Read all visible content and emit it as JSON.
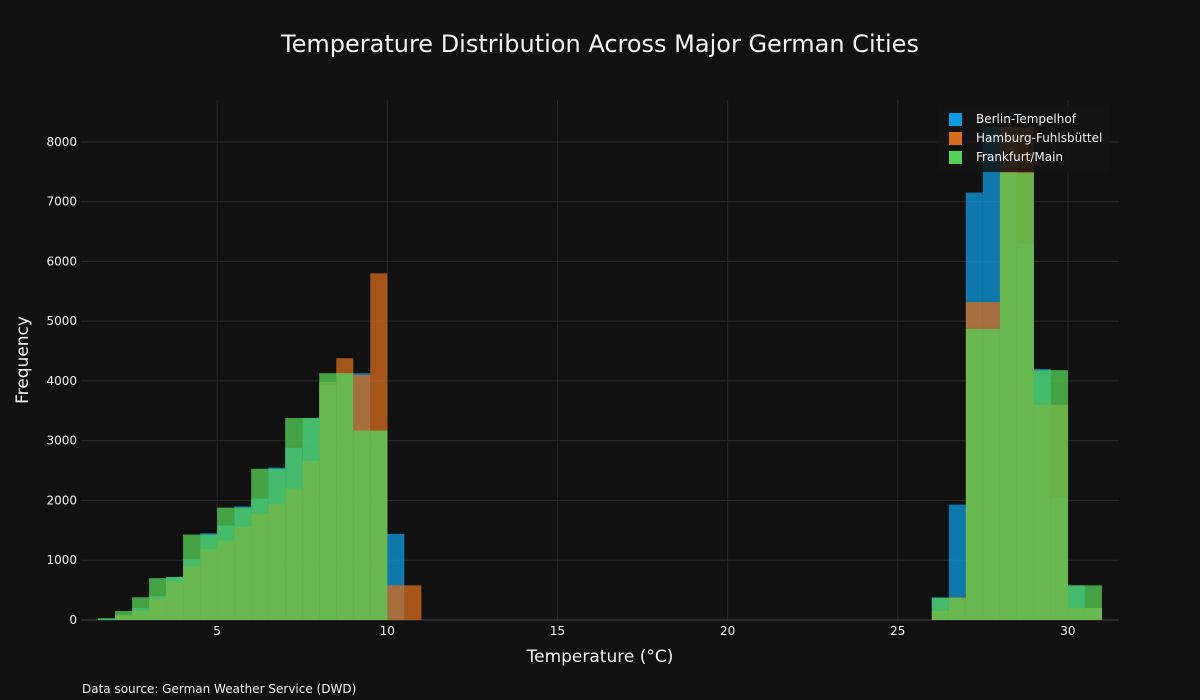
{
  "chart_data": {
    "type": "bar",
    "title": "Temperature Distribution Across Major German Cities",
    "xlabel": "Temperature (°C)",
    "ylabel": "Frequency",
    "xlim": [
      1,
      31.5
    ],
    "ylim": [
      0,
      8700
    ],
    "xticks": [
      5,
      10,
      15,
      20,
      25,
      30
    ],
    "yticks": [
      0,
      1000,
      2000,
      3000,
      4000,
      5000,
      6000,
      7000,
      8000
    ],
    "grid": true,
    "bin_width": 0.5,
    "legend_position": "top-right",
    "source": "Data source: German Weather Service (DWD)",
    "series": [
      {
        "name": "Berlin-Tempelhof",
        "color": "#0e9be2",
        "bin_starts": [
          1.5,
          2.0,
          2.5,
          3.0,
          3.5,
          4.0,
          4.5,
          5.0,
          5.5,
          6.0,
          6.5,
          7.0,
          7.5,
          8.0,
          8.5,
          9.0,
          9.5,
          10.0,
          26.0,
          26.5,
          27.0,
          27.5,
          28.0,
          28.5,
          29.0,
          29.5,
          30.0,
          30.5
        ],
        "values": [
          20,
          80,
          200,
          400,
          720,
          1020,
          1450,
          1580,
          1900,
          2030,
          2550,
          2880,
          3380,
          3930,
          4130,
          4130,
          3170,
          1440,
          380,
          1930,
          7150,
          8250,
          8250,
          6300,
          4200,
          2060,
          580,
          200
        ]
      },
      {
        "name": "Hamburg-Fuhlsbüttel",
        "color": "#d86c1c",
        "bin_starts": [
          2.0,
          2.5,
          3.0,
          3.5,
          4.0,
          4.5,
          5.0,
          5.5,
          6.0,
          6.5,
          7.0,
          7.5,
          8.0,
          8.5,
          9.0,
          9.5,
          10.0,
          10.5,
          26.0,
          26.5,
          27.0,
          27.5,
          28.0,
          28.5,
          29.0,
          29.5,
          30.0,
          30.5
        ],
        "values": [
          80,
          150,
          360,
          640,
          900,
          1180,
          1330,
          1560,
          1780,
          1940,
          2200,
          2660,
          3980,
          4380,
          4100,
          5800,
          580,
          580,
          150,
          380,
          5320,
          5320,
          8250,
          8250,
          3600,
          3600,
          200,
          200
        ]
      },
      {
        "name": "Frankfurt/Main",
        "color": "#55d255",
        "bin_starts": [
          1.5,
          2.0,
          2.5,
          3.0,
          3.5,
          4.0,
          4.5,
          5.0,
          5.5,
          6.0,
          6.5,
          7.0,
          7.5,
          8.0,
          8.5,
          9.0,
          9.5,
          26.0,
          26.5,
          27.0,
          27.5,
          28.0,
          28.5,
          29.0,
          29.5,
          30.0,
          30.5
        ],
        "values": [
          30,
          150,
          380,
          700,
          720,
          1430,
          1430,
          1880,
          1880,
          2530,
          2530,
          3380,
          3380,
          4130,
          4130,
          3170,
          3170,
          370,
          370,
          4870,
          4870,
          7480,
          7480,
          4180,
          4180,
          580,
          580
        ]
      }
    ]
  }
}
